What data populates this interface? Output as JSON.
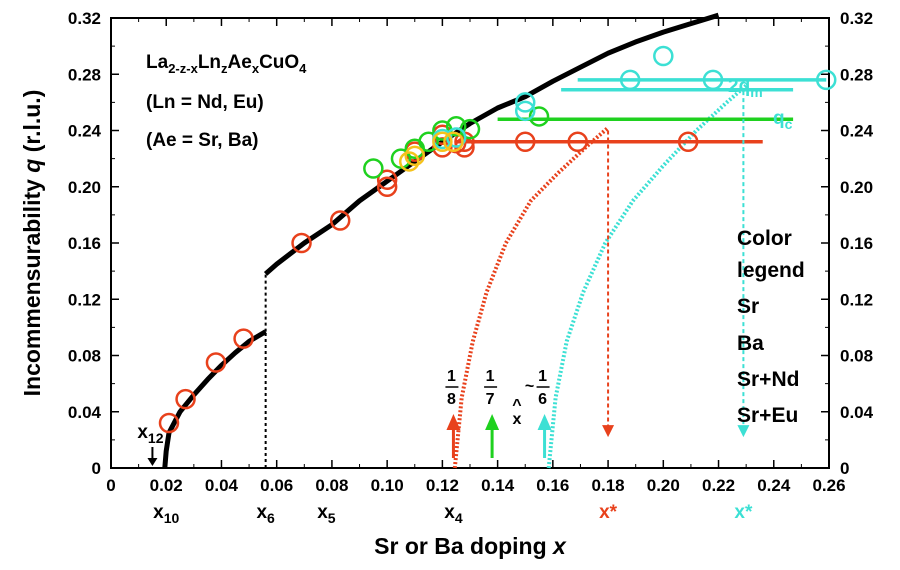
{
  "chart_data": {
    "type": "scatter",
    "xlabel_prefix": "Sr or Ba doping ",
    "xlabel_var": "x",
    "ylabel_prefix": "Incommensurability ",
    "ylabel_var": "q",
    "ylabel_unit": " (r.l.u.)",
    "xlim": [
      0,
      0.26
    ],
    "ylim": [
      0,
      0.32
    ],
    "x_ticks": [
      "0",
      "0.02",
      "0.04",
      "0.06",
      "0.08",
      "0.10",
      "0.12",
      "0.14",
      "0.16",
      "0.18",
      "0.20",
      "0.22",
      "0.24",
      "0.26"
    ],
    "y_ticks": [
      "0",
      "0.04",
      "0.08",
      "0.12",
      "0.16",
      "0.20",
      "0.24",
      "0.28",
      "0.32"
    ],
    "formula": {
      "line1_parts": [
        "La",
        "2-z-x",
        "Ln",
        "z",
        "Ae",
        "x",
        "CuO",
        "4"
      ],
      "line2": "(Ln = Nd, Eu)",
      "line3": "(Ae = Sr, Ba)"
    },
    "legend": {
      "title_line1": "Color",
      "title_line2": "legend",
      "items": [
        {
          "label": "Sr",
          "color": "#e8411c"
        },
        {
          "label": "Ba",
          "color": "#1fd11f"
        },
        {
          "label": "Sr+Nd",
          "color": "#3ce0d4"
        },
        {
          "label": "Sr+Eu",
          "color": "#f5c21c"
        }
      ]
    },
    "colors": {
      "Sr": "#e8411c",
      "Ba": "#1fd11f",
      "SrNd": "#3ce0d4",
      "SrEu": "#f5c21c",
      "curve": "#000000"
    },
    "bottom_labels": [
      {
        "base": "x",
        "sub": "10",
        "x": 0.02
      },
      {
        "base": "x",
        "sub": "6",
        "x": 0.056
      },
      {
        "base": "x",
        "sub": "5",
        "x": 0.078
      },
      {
        "base": "x",
        "sub": "4",
        "x": 0.124
      }
    ],
    "x12": {
      "base": "x",
      "sub": "12",
      "x": 0.015
    },
    "xstar": [
      {
        "label": "x*",
        "x": 0.18,
        "color": "#e8411c"
      },
      {
        "label": "x*",
        "x": 0.229,
        "color": "#3ce0d4"
      }
    ],
    "fractions": [
      {
        "num": "1",
        "den": "8",
        "x": 0.124,
        "color": "#e8411c"
      },
      {
        "num": "1",
        "den": "7",
        "x": 0.138,
        "color": "#1fd11f"
      },
      {
        "num": "1",
        "den": "6",
        "x": 0.157,
        "color": "#3ce0d4",
        "approx": "~"
      }
    ],
    "xhat": {
      "text": "x",
      "hat": "^",
      "x": 0.147
    },
    "qlabels": {
      "two_q_prefix": "2q",
      "two_q_sub": "m",
      "q_base": "q",
      "q_sub": "c"
    },
    "series": [
      {
        "name": "Sr",
        "color": "#e8411c",
        "points": [
          [
            0.021,
            0.032
          ],
          [
            0.027,
            0.049
          ],
          [
            0.038,
            0.075
          ],
          [
            0.048,
            0.092
          ],
          [
            0.069,
            0.16
          ],
          [
            0.083,
            0.176
          ],
          [
            0.1,
            0.2
          ],
          [
            0.1,
            0.205
          ],
          [
            0.11,
            0.225
          ],
          [
            0.12,
            0.228
          ],
          [
            0.12,
            0.237
          ],
          [
            0.125,
            0.231
          ],
          [
            0.128,
            0.228
          ],
          [
            0.128,
            0.232
          ],
          [
            0.15,
            0.232
          ],
          [
            0.169,
            0.232
          ],
          [
            0.209,
            0.232
          ]
        ]
      },
      {
        "name": "Ba",
        "color": "#1fd11f",
        "points": [
          [
            0.095,
            0.213
          ],
          [
            0.105,
            0.22
          ],
          [
            0.11,
            0.227
          ],
          [
            0.115,
            0.232
          ],
          [
            0.12,
            0.24
          ],
          [
            0.125,
            0.243
          ],
          [
            0.13,
            0.241
          ],
          [
            0.155,
            0.25
          ]
        ]
      },
      {
        "name": "Sr+Nd",
        "color": "#3ce0d4",
        "points": [
          [
            0.12,
            0.234
          ],
          [
            0.125,
            0.235
          ],
          [
            0.15,
            0.254
          ],
          [
            0.15,
            0.26
          ],
          [
            0.188,
            0.276
          ],
          [
            0.2,
            0.293
          ],
          [
            0.218,
            0.276
          ],
          [
            0.259,
            0.276
          ]
        ]
      },
      {
        "name": "Sr+Eu",
        "color": "#f5c21c",
        "points": [
          [
            0.108,
            0.218
          ],
          [
            0.11,
            0.222
          ],
          [
            0.12,
            0.232
          ],
          [
            0.124,
            0.232
          ]
        ]
      }
    ],
    "hlines": [
      {
        "color": "#e8411c",
        "y": 0.232,
        "x0": 0.125,
        "x1": 0.236
      },
      {
        "color": "#1fd11f",
        "y": 0.248,
        "x0": 0.14,
        "x1": 0.247
      },
      {
        "color": "#3ce0d4",
        "y": 0.269,
        "x0": 0.163,
        "x1": 0.247
      },
      {
        "color": "#3ce0d4",
        "y": 0.276,
        "x0": 0.169,
        "x1": 0.259
      }
    ],
    "vlines": [
      {
        "color": "#e8411c",
        "x": 0.18,
        "y0": 0.24,
        "y1": 0.022
      },
      {
        "color": "#3ce0d4",
        "x": 0.229,
        "y0": 0.268,
        "y1": 0.022
      }
    ],
    "upArrows": [
      {
        "color": "#e8411c",
        "x": 0.124
      },
      {
        "color": "#1fd11f",
        "x": 0.138
      },
      {
        "color": "#3ce0d4",
        "x": 0.157
      }
    ],
    "curve_low": [
      [
        0.0195,
        0.0
      ],
      [
        0.02,
        0.012
      ],
      [
        0.021,
        0.025
      ],
      [
        0.025,
        0.04
      ],
      [
        0.03,
        0.052
      ],
      [
        0.035,
        0.063
      ],
      [
        0.04,
        0.073
      ],
      [
        0.045,
        0.082
      ],
      [
        0.05,
        0.09
      ],
      [
        0.056,
        0.097
      ]
    ],
    "curve_high": [
      [
        0.056,
        0.138
      ],
      [
        0.06,
        0.145
      ],
      [
        0.07,
        0.16
      ],
      [
        0.08,
        0.173
      ],
      [
        0.09,
        0.19
      ],
      [
        0.1,
        0.204
      ],
      [
        0.11,
        0.218
      ],
      [
        0.12,
        0.232
      ],
      [
        0.13,
        0.245
      ],
      [
        0.14,
        0.256
      ],
      [
        0.15,
        0.264
      ],
      [
        0.16,
        0.275
      ],
      [
        0.17,
        0.285
      ],
      [
        0.18,
        0.295
      ],
      [
        0.19,
        0.303
      ],
      [
        0.2,
        0.31
      ],
      [
        0.21,
        0.316
      ],
      [
        0.22,
        0.322
      ]
    ],
    "curve_steep_red": [
      [
        0.1245,
        0.0
      ],
      [
        0.127,
        0.05
      ],
      [
        0.131,
        0.09
      ],
      [
        0.136,
        0.125
      ],
      [
        0.143,
        0.16
      ],
      [
        0.152,
        0.19
      ],
      [
        0.162,
        0.21
      ],
      [
        0.173,
        0.23
      ],
      [
        0.18,
        0.242
      ]
    ],
    "curve_steep_cyan": [
      [
        0.1585,
        0.0
      ],
      [
        0.161,
        0.05
      ],
      [
        0.165,
        0.09
      ],
      [
        0.171,
        0.125
      ],
      [
        0.179,
        0.16
      ],
      [
        0.189,
        0.19
      ],
      [
        0.2,
        0.215
      ],
      [
        0.212,
        0.24
      ],
      [
        0.223,
        0.26
      ],
      [
        0.23,
        0.272
      ]
    ]
  }
}
